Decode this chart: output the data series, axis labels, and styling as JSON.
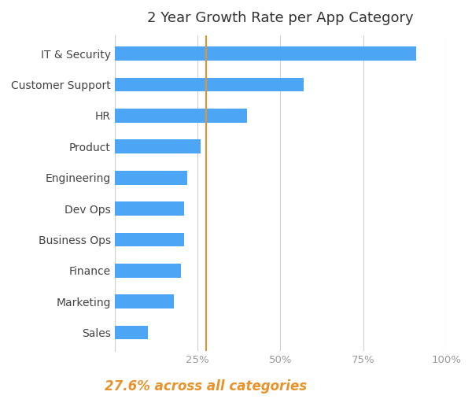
{
  "title": "2 Year Growth Rate per App Category",
  "categories": [
    "IT & Security",
    "Customer Support",
    "HR",
    "Product",
    "Engineering",
    "Dev Ops",
    "Business Ops",
    "Finance",
    "Marketing",
    "Sales"
  ],
  "values": [
    91,
    57,
    40,
    26,
    22,
    21,
    21,
    20,
    18,
    10
  ],
  "bar_color": "#4da6f5",
  "vline_value": 27.6,
  "vline_color": "#e8922a",
  "annotation": "27.6% across all categories",
  "annotation_color": "#e8922a",
  "xlim": [
    0,
    100
  ],
  "xtick_values": [
    0,
    25,
    50,
    75,
    100
  ],
  "xtick_labels": [
    "",
    "25%",
    "50%",
    "75%",
    "100%"
  ],
  "background_color": "#ffffff",
  "title_fontsize": 13,
  "annotation_fontsize": 12,
  "bar_height": 0.45,
  "grid_color": "#d0d0d0",
  "label_color": "#444444",
  "tick_color": "#999999"
}
